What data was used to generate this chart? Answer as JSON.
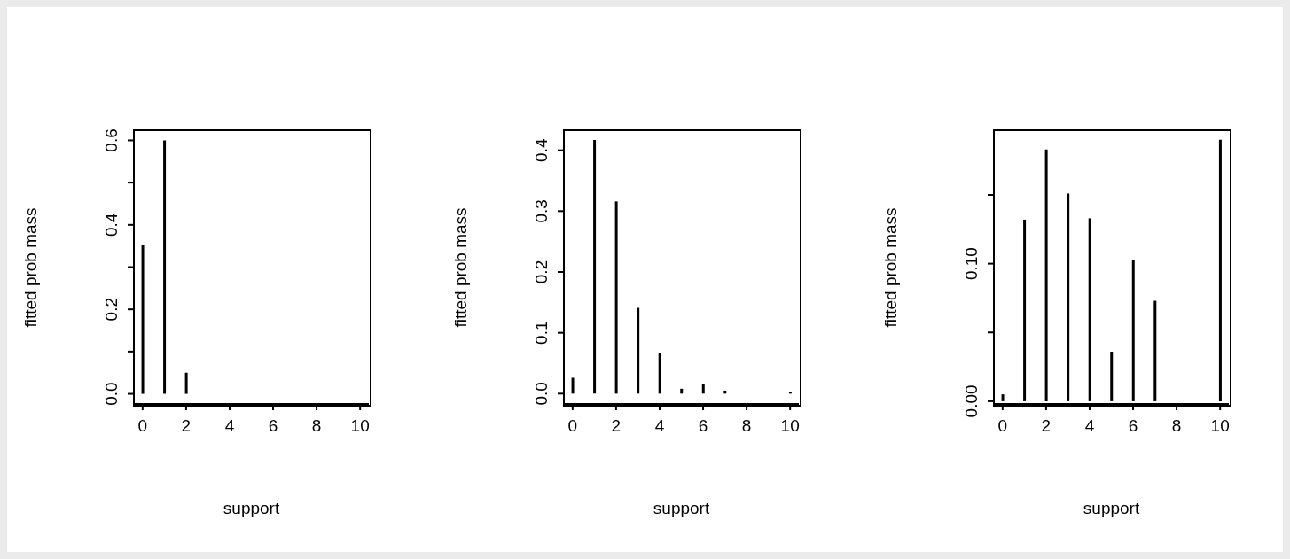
{
  "chart_data": [
    {
      "type": "bar",
      "xlabel": "support",
      "ylabel": "fitted prob mass",
      "color": "#000000",
      "x": [
        0,
        1,
        2,
        3,
        4,
        5,
        6,
        7,
        10
      ],
      "values": [
        0.352,
        0.6,
        0.05,
        0,
        0,
        0,
        0,
        0,
        0
      ],
      "xlim": [
        -0.4,
        10.4
      ],
      "xticks": [
        0,
        2,
        4,
        6,
        8,
        10
      ],
      "ylim": [
        -0.024,
        0.624
      ],
      "yticks": [
        {
          "value": 0,
          "label": "0.0"
        },
        {
          "value": 0.1,
          "label": null
        },
        0.2,
        {
          "value": 0.3,
          "label": null
        },
        0.4,
        {
          "value": 0.5,
          "label": null
        },
        0.6
      ]
    },
    {
      "type": "bar",
      "xlabel": "support",
      "ylabel": "fitted prob mass",
      "color": "#000000",
      "x": [
        0,
        1,
        2,
        3,
        4,
        5,
        6,
        7,
        10
      ],
      "values": [
        0.026,
        0.417,
        0.316,
        0.141,
        0.067,
        0.008,
        0.015,
        0.005,
        0.002
      ],
      "xlim": [
        -0.4,
        10.4
      ],
      "xticks": [
        0,
        2,
        4,
        6,
        8,
        10
      ],
      "ylim": [
        -0.017,
        0.433
      ],
      "yticks": [
        {
          "value": 0,
          "label": "0.0"
        },
        0.1,
        0.2,
        0.3,
        0.4
      ]
    },
    {
      "type": "bar",
      "xlabel": "support",
      "ylabel": "fitted prob mass",
      "color": "#000000",
      "x": [
        0,
        1,
        2,
        3,
        4,
        5,
        6,
        7,
        10
      ],
      "values": [
        0.005,
        0.132,
        0.183,
        0.151,
        0.133,
        0.036,
        0.103,
        0.073,
        0.19
      ],
      "xlim": [
        -0.4,
        10.4
      ],
      "xticks": [
        0,
        2,
        4,
        6,
        8,
        10
      ],
      "ylim": [
        -0.002,
        0.197
      ],
      "yticks": [
        {
          "value": 0,
          "label": "0.00"
        },
        {
          "value": 0.05,
          "label": null
        },
        {
          "value": 0.1,
          "label": "0.10"
        },
        {
          "value": 0.15,
          "label": null
        }
      ]
    }
  ]
}
